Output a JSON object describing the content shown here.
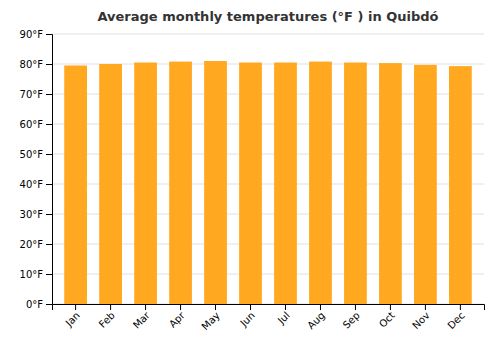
{
  "chart_data": {
    "type": "bar",
    "title": "Average monthly temperatures (°F ) in Quibdó",
    "categories": [
      "Jan",
      "Feb",
      "Mar",
      "Apr",
      "May",
      "Jun",
      "Jul",
      "Aug",
      "Sep",
      "Oct",
      "Nov",
      "Dec"
    ],
    "values": [
      79.5,
      80.0,
      80.5,
      80.8,
      81.0,
      80.5,
      80.5,
      80.8,
      80.5,
      80.3,
      79.7,
      79.3
    ],
    "color": "#FFA820",
    "ylim": [
      0,
      90
    ],
    "yticks": [
      {
        "value": 0,
        "label": "0°F"
      },
      {
        "value": 10,
        "label": "10°F"
      },
      {
        "value": 20,
        "label": "20°F"
      },
      {
        "value": 30,
        "label": "30°F"
      },
      {
        "value": 40,
        "label": "40°F"
      },
      {
        "value": 50,
        "label": "50°F"
      },
      {
        "value": 60,
        "label": "60°F"
      },
      {
        "value": 70,
        "label": "70°F"
      },
      {
        "value": 80,
        "label": "80°F"
      },
      {
        "value": 90,
        "label": "90°F"
      }
    ],
    "grid": true
  }
}
